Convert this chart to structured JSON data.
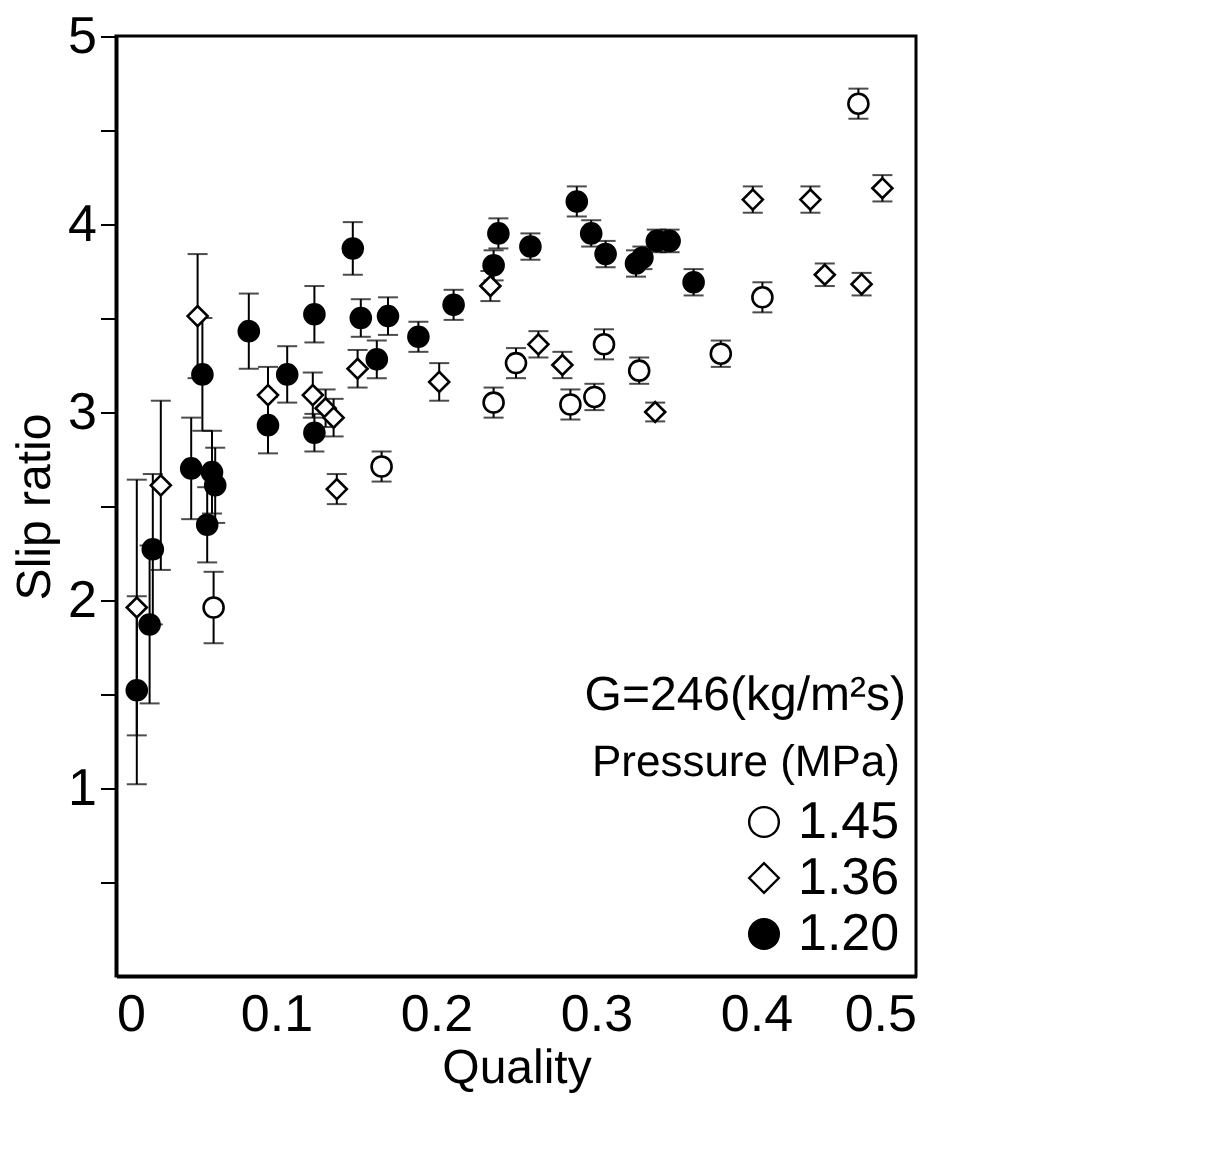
{
  "chart_data": {
    "type": "scatter",
    "xlabel": "Quality",
    "ylabel": "Slip ratio",
    "legend_title": "Pressure (MPa)",
    "annotations": [
      "G=246(kg/m²s)"
    ],
    "xlim": [
      0,
      0.5
    ],
    "xticks": [
      0,
      0.1,
      0.2,
      0.3,
      0.4,
      0.5
    ],
    "ylim": [
      0,
      5
    ],
    "yticks": [
      {
        "value": 0.5,
        "label": null
      },
      1,
      {
        "value": 1.5,
        "label": null
      },
      2,
      {
        "value": 2.5,
        "label": null
      },
      3,
      {
        "value": 3.5,
        "label": null
      },
      4,
      {
        "value": 4.5,
        "label": null
      },
      5
    ],
    "grid": false,
    "legend": "bottom right",
    "series": [
      {
        "name": "1.45",
        "color": "#ffffff",
        "marker": "circle",
        "x": [
          0.061,
          0.166,
          0.236,
          0.25,
          0.284,
          0.299,
          0.305,
          0.327,
          0.378,
          0.404,
          0.464
        ],
        "values": [
          1.96,
          2.71,
          3.05,
          3.26,
          3.04,
          3.08,
          3.36,
          3.22,
          3.31,
          3.61,
          4.64
        ],
        "errors": [
          0.19,
          0.08,
          0.08,
          0.08,
          0.08,
          0.07,
          0.08,
          0.07,
          0.07,
          0.08,
          0.08
        ]
      },
      {
        "name": "1.36",
        "color": "#ffffff",
        "marker": "diamond",
        "x": [
          0.013,
          0.028,
          0.051,
          0.095,
          0.123,
          0.131,
          0.136,
          0.138,
          0.151,
          0.202,
          0.234,
          0.264,
          0.279,
          0.337,
          0.398,
          0.434,
          0.443,
          0.466,
          0.479
        ],
        "values": [
          1.96,
          2.61,
          3.51,
          3.09,
          3.09,
          3.02,
          2.97,
          2.59,
          3.23,
          3.16,
          3.67,
          3.36,
          3.25,
          3.0,
          4.13,
          4.13,
          3.73,
          3.68,
          4.19
        ],
        "errors": [
          0.68,
          0.45,
          0.33,
          0.15,
          0.12,
          0.1,
          0.1,
          0.08,
          0.1,
          0.1,
          0.08,
          0.07,
          0.07,
          0.05,
          0.07,
          0.07,
          0.06,
          0.06,
          0.07
        ]
      },
      {
        "name": "1.20",
        "color": "#000000",
        "marker": "circle",
        "x": [
          0.013,
          0.021,
          0.023,
          0.047,
          0.054,
          0.057,
          0.06,
          0.062,
          0.083,
          0.095,
          0.107,
          0.124,
          0.124,
          0.148,
          0.153,
          0.163,
          0.17,
          0.189,
          0.211,
          0.236,
          0.239,
          0.259,
          0.288,
          0.297,
          0.306,
          0.325,
          0.329,
          0.338,
          0.346,
          0.361
        ],
        "values": [
          1.52,
          1.87,
          2.27,
          2.7,
          3.2,
          2.4,
          2.68,
          2.61,
          3.43,
          2.93,
          3.2,
          2.89,
          3.52,
          3.87,
          3.5,
          3.28,
          3.51,
          3.4,
          3.57,
          3.78,
          3.95,
          3.88,
          4.12,
          3.95,
          3.84,
          3.79,
          3.82,
          3.91,
          3.91,
          3.69
        ],
        "errors": [
          0.5,
          0.42,
          0.4,
          0.27,
          0.3,
          0.2,
          0.22,
          0.2,
          0.2,
          0.15,
          0.15,
          0.1,
          0.15,
          0.14,
          0.1,
          0.1,
          0.1,
          0.08,
          0.08,
          0.08,
          0.08,
          0.07,
          0.08,
          0.07,
          0.07,
          0.07,
          0.06,
          0.06,
          0.06,
          0.07
        ]
      }
    ]
  }
}
